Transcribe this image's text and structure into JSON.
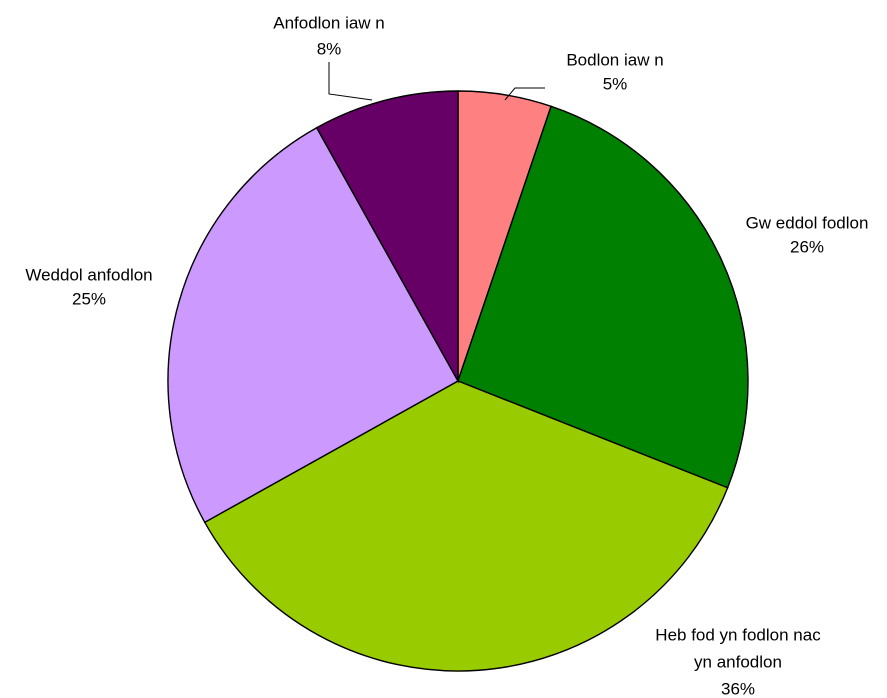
{
  "chart_data": {
    "type": "pie",
    "title": "",
    "start_angle_deg": 0,
    "direction": "clockwise",
    "slices": [
      {
        "label_lines": [
          "Bodlon iaw n"
        ],
        "percent_label": "5%",
        "value": 5.2,
        "color": "#ff8080"
      },
      {
        "label_lines": [
          "Gw eddol fodlon"
        ],
        "percent_label": "26%",
        "value": 25.8,
        "color": "#008000"
      },
      {
        "label_lines": [
          "Heb fod yn fodlon nac",
          "yn anfodlon"
        ],
        "percent_label": "36%",
        "value": 35.9,
        "color": "#99cc00"
      },
      {
        "label_lines": [
          "Weddol anfodlon"
        ],
        "percent_label": "25%",
        "value": 25.0,
        "color": "#cc99ff"
      },
      {
        "label_lines": [
          "Anfodlon iaw n"
        ],
        "percent_label": "8%",
        "value": 8.1,
        "color": "#660066"
      }
    ],
    "legend": "none",
    "data_labels": "category name and percentage"
  }
}
